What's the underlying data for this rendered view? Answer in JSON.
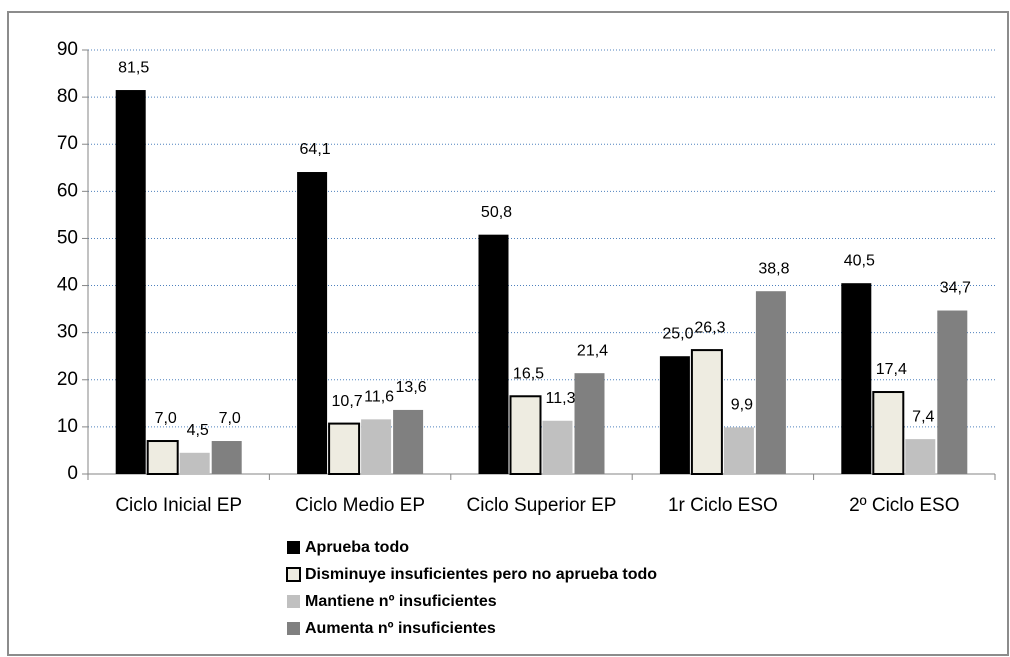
{
  "chart_data": {
    "type": "bar",
    "categories": [
      "Ciclo Inicial EP",
      "Ciclo Medio EP",
      "Ciclo Superior EP",
      "1r Ciclo ESO",
      "2º Ciclo ESO"
    ],
    "series": [
      {
        "name": "Aprueba todo",
        "color": "#000000",
        "values": [
          81.5,
          64.1,
          50.8,
          25.0,
          40.5
        ],
        "value_labels": [
          "81,5",
          "64,1",
          "50,8",
          "25,0",
          "40,5"
        ]
      },
      {
        "name": "Disminuye insuficientes pero no aprueba todo",
        "color": "#eeece1",
        "values": [
          7.0,
          10.7,
          16.5,
          26.3,
          17.4
        ],
        "value_labels": [
          "7,0",
          "10,7",
          "16,5",
          "26,3",
          "17,4"
        ]
      },
      {
        "name": "Mantiene nº insuficientes",
        "color": "#c0c0c0",
        "values": [
          4.5,
          11.6,
          11.3,
          9.9,
          7.4
        ],
        "value_labels": [
          "4,5",
          "11,6",
          "11,3",
          "9,9",
          "7,4"
        ]
      },
      {
        "name": "Aumenta nº insuficientes",
        "color": "#808080",
        "values": [
          7.0,
          13.6,
          21.4,
          38.8,
          34.7
        ],
        "value_labels": [
          "7,0",
          "13,6",
          "21,4",
          "38,8",
          "34,7"
        ]
      }
    ],
    "ylim": [
      0,
      90
    ],
    "yticks": [
      0,
      10,
      20,
      30,
      40,
      50,
      60,
      70,
      80,
      90
    ],
    "grid": true,
    "legend": "bottom"
  }
}
